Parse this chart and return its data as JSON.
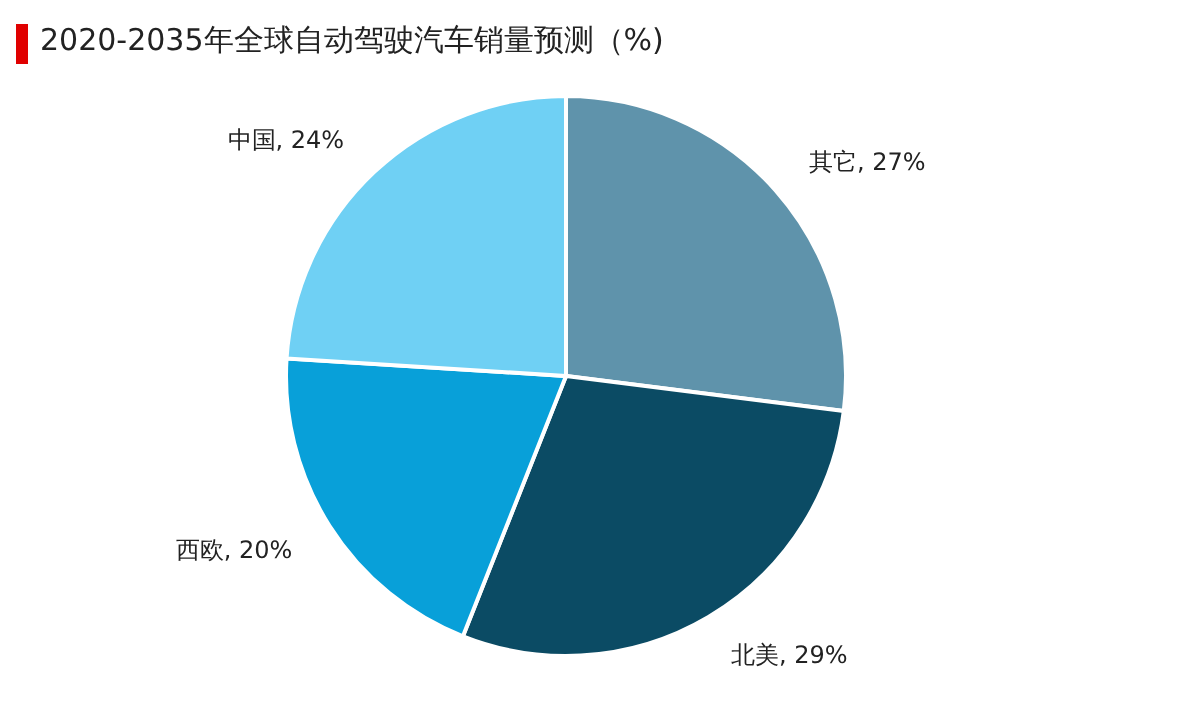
{
  "chart_data": {
    "type": "pie",
    "title": "2020-2035年全球自动驾驶汽车销量预测（%)",
    "categories": [
      "其它",
      "北美",
      "西欧",
      "中国"
    ],
    "values": [
      27,
      29,
      20,
      24
    ],
    "value_labels": [
      "27%",
      "29%",
      "20%",
      "24%"
    ],
    "colors": [
      "#5f93ab",
      "#0b4b64",
      "#08a0d9",
      "#6fd0f4"
    ]
  }
}
